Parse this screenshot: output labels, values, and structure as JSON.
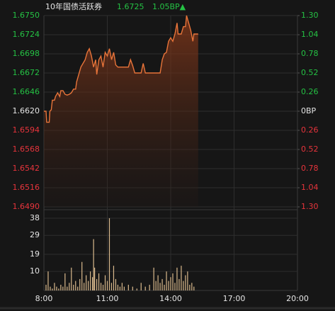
{
  "chart_data": [
    {
      "type": "line",
      "title": "10年国债活跃券",
      "last_price": 1.6725,
      "change": "1.05BP▲",
      "title_color": "#e6e6e6",
      "up_color": "#25c244",
      "down_color": "#e8343c",
      "flat_color": "#e6e6e6",
      "color": "#e8743a",
      "x": [
        8.0,
        8.1,
        8.13,
        8.25,
        8.28,
        8.35,
        8.4,
        8.5,
        8.55,
        8.65,
        8.75,
        8.8,
        8.9,
        9.0,
        9.1,
        9.2,
        9.3,
        9.4,
        9.5,
        9.55,
        9.65,
        9.75,
        9.85,
        9.95,
        10.05,
        10.15,
        10.25,
        10.35,
        10.45,
        10.5,
        10.6,
        10.7,
        10.8,
        10.9,
        11.0,
        11.1,
        11.2,
        11.3,
        11.4,
        11.5,
        12.0,
        12.1,
        12.2,
        12.3,
        12.6,
        12.7,
        12.8,
        13.5,
        13.6,
        13.7,
        13.8,
        13.9,
        14.0,
        14.1,
        14.2,
        14.3,
        14.35,
        14.5,
        14.6,
        14.7,
        14.75,
        14.85,
        14.95,
        15.05,
        15.1,
        15.3
      ],
      "values": [
        1.662,
        1.662,
        1.6605,
        1.6605,
        1.662,
        1.6622,
        1.6635,
        1.6635,
        1.664,
        1.6645,
        1.664,
        1.6648,
        1.6648,
        1.6643,
        1.6642,
        1.6643,
        1.6645,
        1.665,
        1.665,
        1.666,
        1.667,
        1.668,
        1.6685,
        1.669,
        1.67,
        1.6705,
        1.6695,
        1.668,
        1.669,
        1.667,
        1.669,
        1.6695,
        1.668,
        1.67,
        1.6695,
        1.6705,
        1.669,
        1.67,
        1.6683,
        1.668,
        1.668,
        1.669,
        1.6682,
        1.6672,
        1.6672,
        1.6685,
        1.6672,
        1.6672,
        1.669,
        1.6698,
        1.67,
        1.6715,
        1.672,
        1.6715,
        1.6725,
        1.674,
        1.6725,
        1.6725,
        1.6735,
        1.6735,
        1.675,
        1.674,
        1.673,
        1.6715,
        1.6725,
        1.6725
      ],
      "xlim": [
        8,
        20
      ],
      "xticks": [
        {
          "value": 8,
          "label": "8:00"
        },
        {
          "value": 11,
          "label": "11:00"
        },
        {
          "value": 14,
          "label": "14:00"
        },
        {
          "value": 17,
          "label": "17:00"
        },
        {
          "value": 20,
          "label": "20:00"
        }
      ],
      "ylim": [
        1.649,
        1.675
      ],
      "yticks": [
        {
          "value": 1.675,
          "label": "1.6750"
        },
        1.6724,
        1.6698,
        1.6672,
        1.6646,
        {
          "value": 1.662,
          "label": "1.6620"
        },
        1.6594,
        1.6568,
        1.6542,
        1.6516,
        {
          "value": 1.649,
          "label": "1.6490"
        }
      ],
      "y2lim": [
        -1.3,
        1.3
      ],
      "y2ticks": [
        {
          "value": 1.3,
          "label": "1.30"
        },
        1.04,
        0.78,
        0.52,
        0.26,
        {
          "value": 0,
          "label": "0BP"
        },
        {
          "value": -0.26,
          "label": "0.26"
        },
        {
          "value": -0.52,
          "label": "0.52"
        },
        {
          "value": -0.78,
          "label": "0.78"
        },
        {
          "value": -1.04,
          "label": "1.04"
        },
        {
          "value": -1.3,
          "label": "1.30"
        }
      ],
      "grid": true
    },
    {
      "type": "bar",
      "color": "#d9b98c",
      "x": [
        8.1,
        8.2,
        8.3,
        8.4,
        8.5,
        8.6,
        8.7,
        8.8,
        8.9,
        9.0,
        9.1,
        9.2,
        9.3,
        9.4,
        9.5,
        9.6,
        9.7,
        9.8,
        9.9,
        10.0,
        10.1,
        10.2,
        10.3,
        10.35,
        10.4,
        10.5,
        10.6,
        10.7,
        10.8,
        10.9,
        11.0,
        11.1,
        11.2,
        11.3,
        11.4,
        11.5,
        11.6,
        11.7,
        11.8,
        12.0,
        12.2,
        12.4,
        12.6,
        12.8,
        13.0,
        13.2,
        13.3,
        13.4,
        13.5,
        13.6,
        13.7,
        13.8,
        13.9,
        14.0,
        14.1,
        14.2,
        14.3,
        14.4,
        14.5,
        14.6,
        14.7,
        14.8,
        14.9,
        15.0,
        15.1
      ],
      "values": [
        3,
        10,
        2,
        1,
        4,
        2,
        1,
        3,
        2,
        9,
        2,
        4,
        12,
        3,
        5,
        2,
        6,
        15,
        4,
        8,
        5,
        10,
        7,
        27,
        12,
        6,
        9,
        4,
        3,
        8,
        5,
        38,
        4,
        13,
        6,
        3,
        2,
        4,
        2,
        3,
        2,
        1,
        4,
        2,
        3,
        12,
        5,
        8,
        4,
        6,
        3,
        10,
        5,
        7,
        9,
        4,
        12,
        6,
        13,
        5,
        8,
        10,
        3,
        4,
        2
      ],
      "ylim": [
        0,
        41
      ],
      "yticks": [
        38,
        29,
        19,
        10
      ]
    }
  ]
}
